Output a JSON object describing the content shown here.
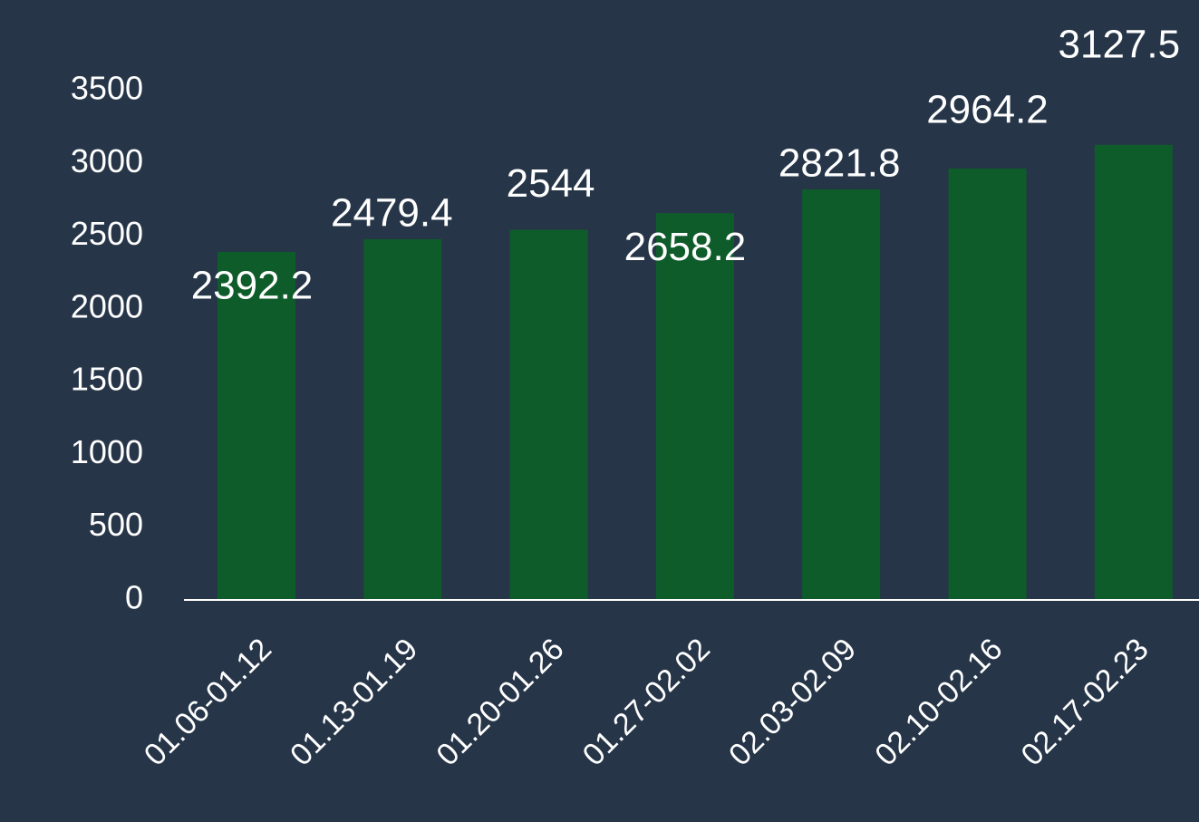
{
  "chart_data": {
    "type": "bar",
    "categories": [
      "01.06-01.12",
      "01.13-01.19",
      "01.20-01.26",
      "01.27-02.02",
      "02.03-02.09",
      "02.10-02.16",
      "02.17-02.23"
    ],
    "values": [
      2392.2,
      2479.4,
      2544,
      2658.2,
      2821.8,
      2964.2,
      3127.5
    ],
    "color": "#0e5c2a",
    "ylim": [
      0,
      3500
    ],
    "yticks": [
      0,
      500,
      1000,
      1500,
      2000,
      2500,
      3000,
      3500
    ],
    "grid": false
  }
}
